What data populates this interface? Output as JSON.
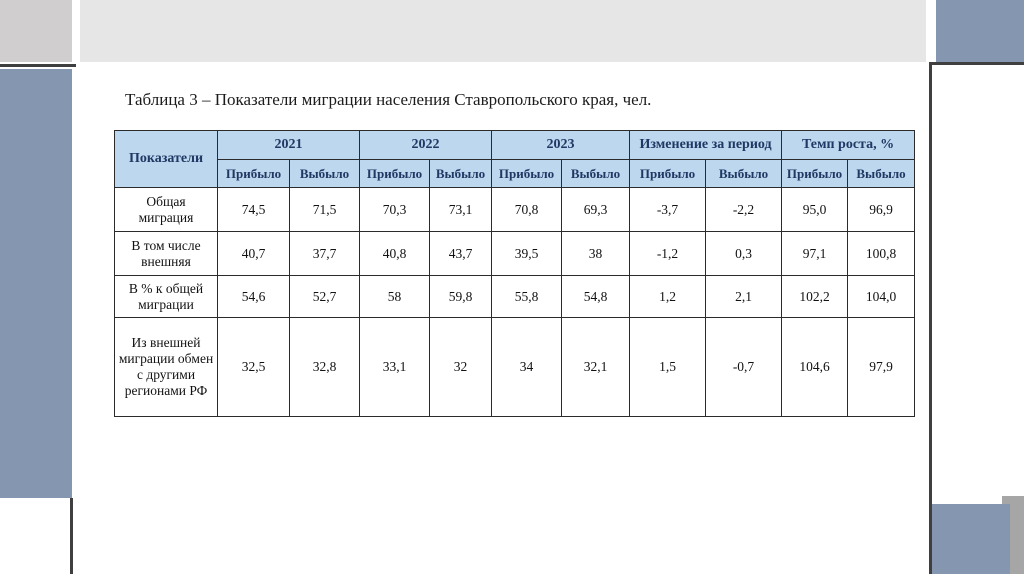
{
  "slide": {
    "title": "Таблица 3 – Показатели миграции населения Ставропольского края, чел."
  },
  "table": {
    "corner_header": "Показатели",
    "group_headers": [
      "2021",
      "2022",
      "2023",
      "Изменение за период",
      "Темп роста, %"
    ],
    "sub_headers": [
      "Прибыло",
      "Выбыло",
      "Прибыло",
      "Выбыло",
      "Прибыло",
      "Выбыло",
      "Прибыло",
      "Выбыло",
      "Прибыло",
      "Выбыло"
    ],
    "rows": [
      {
        "label": "Общая миграция",
        "values": [
          "74,5",
          "71,5",
          "70,3",
          "73,1",
          "70,8",
          "69,3",
          "-3,7",
          "-2,2",
          "95,0",
          "96,9"
        ]
      },
      {
        "label": "В том числе внешняя",
        "values": [
          "40,7",
          "37,7",
          "40,8",
          "43,7",
          "39,5",
          "38",
          "-1,2",
          "0,3",
          "97,1",
          "100,8"
        ]
      },
      {
        "label": "В % к общей миграции",
        "values": [
          "54,6",
          "52,7",
          "58",
          "59,8",
          "55,8",
          "54,8",
          "1,2",
          "2,1",
          "102,2",
          "104,0"
        ]
      },
      {
        "label": "Из внешней миграции обмен с другими регионами РФ",
        "values": [
          "32,5",
          "32,8",
          "33,1",
          "32",
          "34",
          "32,1",
          "1,5",
          "-0,7",
          "104,6",
          "97,9"
        ]
      }
    ]
  },
  "colors": {
    "header_bg": "#BDD7EE",
    "header_text": "#1F3864",
    "accent_blue_gray": "#8496B0",
    "top_strip_gray": "#E7E6E6",
    "top_corner_gray": "#D0CECE",
    "bottom_corner_gray": "#A6A6A6",
    "dark_line": "#3F3F3F",
    "table_border": "#2B2B2B"
  }
}
